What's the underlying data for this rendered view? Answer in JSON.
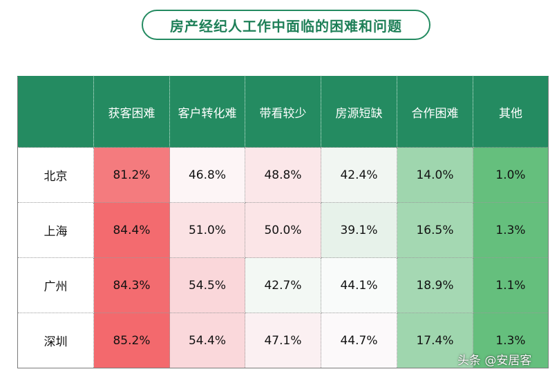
{
  "title": "房产经纪人工作中面临的困难和问题",
  "watermark": "头条 @安居客",
  "chart_data": {
    "type": "table",
    "columns": [
      "",
      "获客困难",
      "客户转化难",
      "带看较少",
      "房源短缺",
      "合作困难",
      "其他"
    ],
    "rows": [
      {
        "city": "北京",
        "values": [
          "81.2%",
          "46.8%",
          "48.8%",
          "42.4%",
          "14.0%",
          "1.0%"
        ]
      },
      {
        "city": "上海",
        "values": [
          "84.4%",
          "51.0%",
          "50.0%",
          "39.1%",
          "16.5%",
          "1.3%"
        ]
      },
      {
        "city": "广州",
        "values": [
          "84.3%",
          "54.5%",
          "42.7%",
          "44.1%",
          "18.9%",
          "1.1%"
        ]
      },
      {
        "city": "深圳",
        "values": [
          "85.2%",
          "54.4%",
          "47.1%",
          "44.7%",
          "17.4%",
          "1.3%"
        ]
      }
    ],
    "cell_colors": [
      [
        "#f47b7e",
        "#fdf5f6",
        "#fbe7e9",
        "#f1f6f2",
        "#9fd6ae",
        "#65bf7d"
      ],
      [
        "#f36b6f",
        "#fbe2e4",
        "#fbe5e7",
        "#e7f2ea",
        "#a4d8b2",
        "#65bf7d"
      ],
      [
        "#f36c70",
        "#fad7da",
        "#f3f8f4",
        "#f9fbfa",
        "#a5d8b3",
        "#65bf7d"
      ],
      [
        "#f3696d",
        "#fad8db",
        "#fbf0f2",
        "#fcf9fa",
        "#9fd6ae",
        "#65bf7d"
      ]
    ],
    "header_color": "#248b61"
  }
}
